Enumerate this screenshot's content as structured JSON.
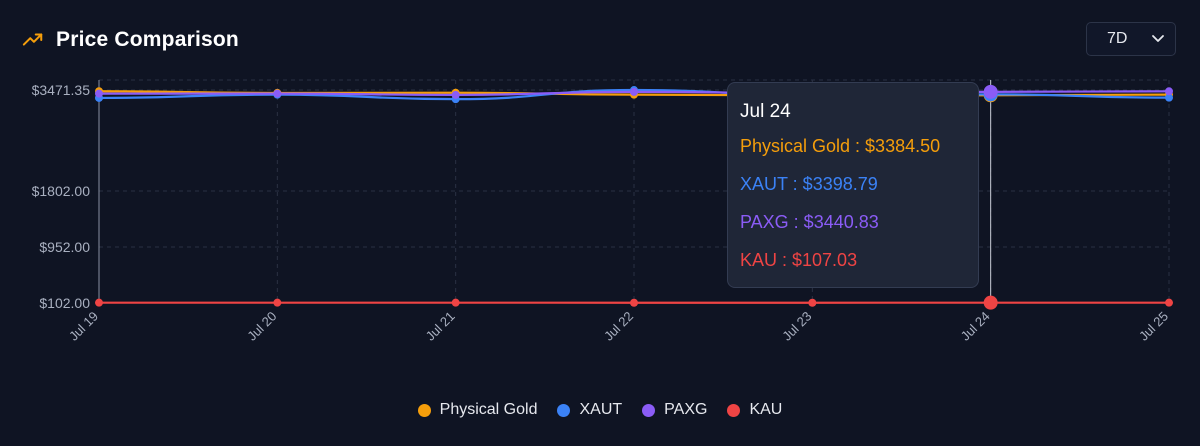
{
  "header": {
    "title": "Price Comparison",
    "icon": "trending-up-icon",
    "icon_color": "#f59e0b"
  },
  "range_select": {
    "selected": "7D",
    "icon": "chevron-down-icon"
  },
  "tooltip": {
    "date": "Jul 24",
    "rows": [
      {
        "label": "Physical Gold : $3384.50",
        "color": "#f59e0b"
      },
      {
        "label": "XAUT : $3398.79",
        "color": "#3b82f6"
      },
      {
        "label": "PAXG : $3440.83",
        "color": "#8b5cf6"
      },
      {
        "label": "KAU : $107.03",
        "color": "#ef4444"
      }
    ]
  },
  "chart_data": {
    "type": "line",
    "title": "Price Comparison",
    "x": [
      "Jul 19",
      "Jul 20",
      "Jul 21",
      "Jul 22",
      "Jul 23",
      "Jul 24",
      "Jul 25"
    ],
    "y_ticks": [
      "$102.00",
      "$952.00",
      "$1802.00",
      "$3471.35"
    ],
    "y_tick_values": [
      102,
      952,
      1802,
      3471.35
    ],
    "ylim": [
      102,
      3600
    ],
    "grid": true,
    "legend_position": "bottom",
    "active_x": "Jul 24",
    "series": [
      {
        "name": "Physical Gold",
        "color": "#f59e0b",
        "values": [
          3451,
          3423,
          3426,
          3395,
          3380,
          3384.5,
          3395
        ]
      },
      {
        "name": "XAUT",
        "color": "#3b82f6",
        "values": [
          3340,
          3395,
          3320,
          3471,
          3386,
          3398.79,
          3345
        ]
      },
      {
        "name": "PAXG",
        "color": "#8b5cf6",
        "values": [
          3412,
          3412,
          3390,
          3440,
          3420,
          3440.83,
          3450
        ]
      },
      {
        "name": "KAU",
        "color": "#ef4444",
        "values": [
          107,
          107,
          107,
          106,
          106,
          107.03,
          107
        ]
      }
    ]
  }
}
